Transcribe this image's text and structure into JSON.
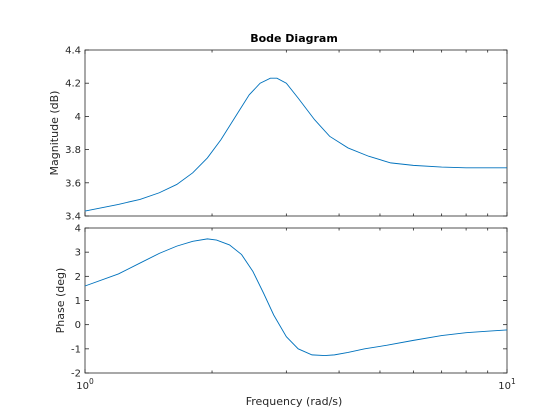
{
  "chart_data": {
    "type": "line",
    "title": "Bode Diagram",
    "xlabel": "Frequency  (rad/s)",
    "xscale": "log",
    "xlim": [
      1,
      10
    ],
    "x_ticks": [
      1,
      10
    ],
    "x_tick_labels": [
      {
        "base": "10",
        "exp": "0"
      },
      {
        "base": "10",
        "exp": "1"
      }
    ],
    "line_color": "#0072BD",
    "grid": false,
    "panels": [
      {
        "name": "magnitude",
        "ylabel": "Magnitude (dB)",
        "ylim": [
          3.4,
          4.4
        ],
        "y_ticks": [
          3.4,
          3.6,
          3.8,
          4,
          4.2,
          4.4
        ],
        "y_tick_labels": [
          "3.4",
          "3.6",
          "3.8",
          "4",
          "4.2",
          "4.4"
        ],
        "x": [
          1.0,
          1.2,
          1.35,
          1.5,
          1.65,
          1.8,
          1.95,
          2.1,
          2.3,
          2.45,
          2.6,
          2.75,
          2.85,
          3.0,
          3.2,
          3.5,
          3.8,
          4.2,
          4.7,
          5.3,
          6.0,
          7.0,
          8.0,
          9.0,
          10.0
        ],
        "y": [
          3.43,
          3.47,
          3.5,
          3.54,
          3.59,
          3.66,
          3.75,
          3.86,
          4.02,
          4.13,
          4.2,
          4.23,
          4.23,
          4.2,
          4.11,
          3.98,
          3.88,
          3.81,
          3.76,
          3.72,
          3.705,
          3.695,
          3.69,
          3.69,
          3.69
        ]
      },
      {
        "name": "phase",
        "ylabel": "Phase (deg)",
        "ylim": [
          -2,
          4
        ],
        "y_ticks": [
          -2,
          -1,
          0,
          1,
          2,
          3,
          4
        ],
        "y_tick_labels": [
          "-2",
          "-1",
          "0",
          "1",
          "2",
          "3",
          "4"
        ],
        "x": [
          1.0,
          1.2,
          1.35,
          1.5,
          1.65,
          1.8,
          1.95,
          2.05,
          2.2,
          2.35,
          2.5,
          2.65,
          2.8,
          3.0,
          3.2,
          3.45,
          3.7,
          3.9,
          4.2,
          4.6,
          5.2,
          6.0,
          7.0,
          8.0,
          9.0,
          10.0
        ],
        "y": [
          1.6,
          2.1,
          2.55,
          2.95,
          3.25,
          3.45,
          3.55,
          3.5,
          3.3,
          2.9,
          2.2,
          1.3,
          0.4,
          -0.5,
          -1.0,
          -1.25,
          -1.28,
          -1.25,
          -1.15,
          -1.0,
          -0.85,
          -0.65,
          -0.45,
          -0.33,
          -0.27,
          -0.22
        ]
      }
    ]
  }
}
